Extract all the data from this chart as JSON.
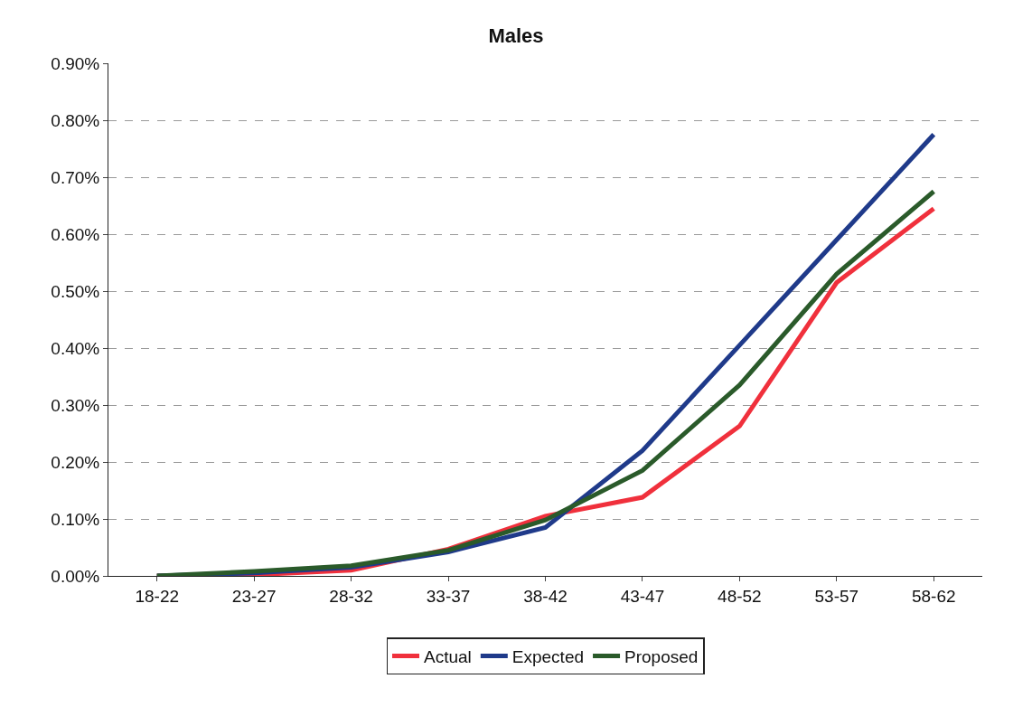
{
  "chart_data": {
    "type": "line",
    "title": "Males",
    "categories": [
      "18-22",
      "23-27",
      "28-32",
      "33-37",
      "38-42",
      "43-47",
      "48-52",
      "53-57",
      "58-62"
    ],
    "series": [
      {
        "name": "Actual",
        "color": "#f0303c",
        "values": [
          0,
          0.002,
          0.01,
          0.047,
          0.105,
          0.138,
          0.263,
          0.515,
          0.645
        ]
      },
      {
        "name": "Expected",
        "color": "#1f3a8a",
        "values": [
          0,
          0.005,
          0.015,
          0.042,
          0.085,
          0.22,
          0.405,
          0.59,
          0.775
        ]
      },
      {
        "name": "Proposed",
        "color": "#2a5a2a",
        "values": [
          0,
          0.008,
          0.018,
          0.045,
          0.098,
          0.185,
          0.335,
          0.53,
          0.675
        ]
      }
    ],
    "ylim": [
      0,
      0.9
    ],
    "yticks": [
      {
        "value": 0,
        "label": "0.00%"
      },
      {
        "value": 0.1,
        "label": "0.10%"
      },
      {
        "value": 0.2,
        "label": "0.20%"
      },
      {
        "value": 0.3,
        "label": "0.30%"
      },
      {
        "value": 0.4,
        "label": "0.40%"
      },
      {
        "value": 0.5,
        "label": "0.50%"
      },
      {
        "value": 0.6,
        "label": "0.60%"
      },
      {
        "value": 0.7,
        "label": "0.70%"
      },
      {
        "value": 0.8,
        "label": "0.80%"
      },
      {
        "value": 0.9,
        "label": "0.90%"
      }
    ],
    "grid": "y",
    "legend": "bottom",
    "marker": "none",
    "line_style": "solid"
  }
}
